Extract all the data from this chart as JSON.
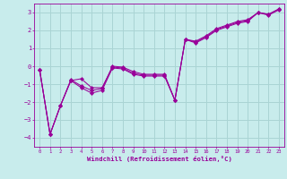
{
  "xlabel": "Windchill (Refroidissement éolien,°C)",
  "background_color": "#c8ecec",
  "grid_color": "#aad4d4",
  "line_color": "#990099",
  "spine_color": "#800080",
  "xlim": [
    -0.5,
    23.5
  ],
  "ylim": [
    -4.5,
    3.5
  ],
  "yticks": [
    -4,
    -3,
    -2,
    -1,
    0,
    1,
    2,
    3
  ],
  "xticks": [
    0,
    1,
    2,
    3,
    4,
    5,
    6,
    7,
    8,
    9,
    10,
    11,
    12,
    13,
    14,
    15,
    16,
    17,
    18,
    19,
    20,
    21,
    22,
    23
  ],
  "series1": [
    [
      0,
      -0.2
    ],
    [
      1,
      -3.8
    ],
    [
      2,
      -2.2
    ],
    [
      3,
      -0.8
    ],
    [
      4,
      -0.7
    ],
    [
      5,
      -1.2
    ],
    [
      6,
      -1.2
    ],
    [
      7,
      -0.05
    ],
    [
      8,
      -0.1
    ],
    [
      9,
      -0.4
    ],
    [
      10,
      -0.5
    ],
    [
      11,
      -0.5
    ],
    [
      12,
      -0.5
    ],
    [
      13,
      -1.9
    ],
    [
      14,
      1.5
    ],
    [
      15,
      1.35
    ],
    [
      16,
      1.65
    ],
    [
      17,
      2.05
    ],
    [
      18,
      2.25
    ],
    [
      19,
      2.45
    ],
    [
      20,
      2.55
    ],
    [
      21,
      3.0
    ],
    [
      22,
      2.9
    ],
    [
      23,
      3.2
    ]
  ],
  "series2": [
    [
      0,
      -0.2
    ],
    [
      1,
      -3.8
    ],
    [
      2,
      -2.2
    ],
    [
      3,
      -0.75
    ],
    [
      4,
      -1.1
    ],
    [
      5,
      -1.35
    ],
    [
      6,
      -1.25
    ],
    [
      7,
      0.0
    ],
    [
      8,
      -0.05
    ],
    [
      9,
      -0.3
    ],
    [
      10,
      -0.45
    ],
    [
      11,
      -0.45
    ],
    [
      12,
      -0.45
    ],
    [
      13,
      -1.9
    ],
    [
      14,
      1.5
    ],
    [
      15,
      1.4
    ],
    [
      16,
      1.7
    ],
    [
      17,
      2.1
    ],
    [
      18,
      2.3
    ],
    [
      19,
      2.5
    ],
    [
      20,
      2.6
    ],
    [
      21,
      3.0
    ],
    [
      22,
      2.9
    ],
    [
      23,
      3.2
    ]
  ],
  "series3": [
    [
      0,
      -0.2
    ],
    [
      1,
      -3.8
    ],
    [
      2,
      -2.2
    ],
    [
      3,
      -0.8
    ],
    [
      4,
      -1.2
    ],
    [
      5,
      -1.5
    ],
    [
      6,
      -1.35
    ],
    [
      7,
      -0.1
    ],
    [
      8,
      -0.15
    ],
    [
      9,
      -0.45
    ],
    [
      10,
      -0.55
    ],
    [
      11,
      -0.55
    ],
    [
      12,
      -0.55
    ],
    [
      13,
      -1.9
    ],
    [
      14,
      1.5
    ],
    [
      15,
      1.3
    ],
    [
      16,
      1.6
    ],
    [
      17,
      2.0
    ],
    [
      18,
      2.2
    ],
    [
      19,
      2.4
    ],
    [
      20,
      2.5
    ],
    [
      21,
      3.0
    ],
    [
      22,
      2.85
    ],
    [
      23,
      3.15
    ]
  ]
}
